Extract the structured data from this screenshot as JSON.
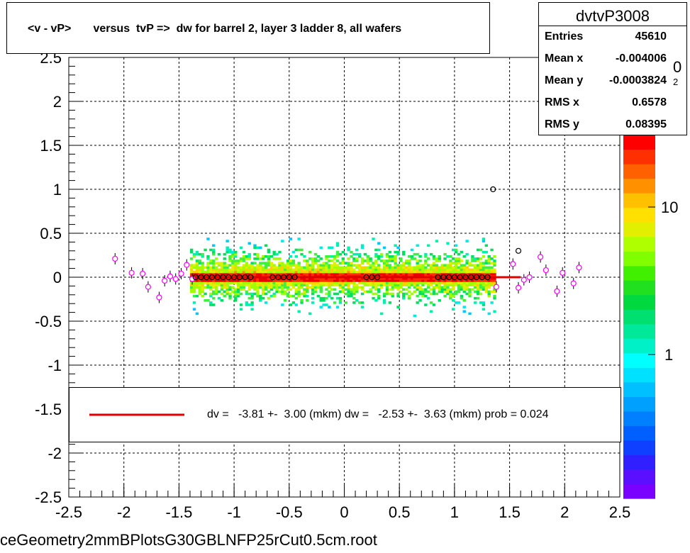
{
  "title": "<v - vP>       versus  tvP =>  dw for barrel 2, layer 3 ladder 8, all wafers",
  "stats": {
    "name": "dvtvP3008",
    "rows": [
      {
        "label": "Entries",
        "value": "45610"
      },
      {
        "label": "Mean x",
        "value": "-0.004006"
      },
      {
        "label": "Mean y",
        "value": "-0.0003824"
      },
      {
        "label": "RMS x",
        "value": "0.6578"
      },
      {
        "label": "RMS y",
        "value": "0.08395"
      }
    ]
  },
  "legend": {
    "text": "dv =   -3.81 +-  3.00 (mkm) dw =   -2.53 +-  3.63 (mkm) prob = 0.024",
    "line_color": "#dd0000"
  },
  "footer": "ceGeometry2mmBPlotsG30GBLNFP25rCut0.5cm.root",
  "chart_data": {
    "type": "heatmap",
    "title": "<v - vP>       versus  tvP =>  dw for barrel 2, layer 3 ladder 8, all wafers",
    "xlim": [
      -2.5,
      2.5
    ],
    "ylim": [
      -2.5,
      2.5
    ],
    "x_ticks": [
      "-2.5",
      "-2",
      "-1.5",
      "-1",
      "-0.5",
      "0",
      "0.5",
      "1",
      "1.5",
      "2",
      "2.5"
    ],
    "y_ticks": [
      "-2.5",
      "-2",
      "-1.5",
      "-1",
      "-0.5",
      "0",
      "0.5",
      "1",
      "1.5",
      "2",
      "2.5"
    ],
    "grid": true,
    "z_scale": "log",
    "z_tick_labels": [
      "1",
      "10",
      "10^2"
    ],
    "density_band": {
      "x_range": [
        -1.4,
        1.35
      ],
      "y_spread": [
        -0.45,
        0.45
      ],
      "core_y": [
        -0.05,
        0.05
      ]
    },
    "profile_points_black": [
      [
        -1.35,
        0.0
      ],
      [
        -1.3,
        0.0
      ],
      [
        -1.25,
        0.0
      ],
      [
        -1.2,
        0.0
      ],
      [
        -1.15,
        0.0
      ],
      [
        -1.1,
        0.0
      ],
      [
        -1.05,
        0.0
      ],
      [
        -1.0,
        0.0
      ],
      [
        -0.95,
        0.0
      ],
      [
        -0.9,
        0.0
      ],
      [
        -0.85,
        0.0
      ],
      [
        -0.65,
        0.0
      ],
      [
        -0.6,
        0.0
      ],
      [
        -0.55,
        0.0
      ],
      [
        -0.5,
        0.0
      ],
      [
        -0.45,
        0.0
      ],
      [
        0.2,
        0.0
      ],
      [
        0.25,
        0.0
      ],
      [
        0.3,
        0.0
      ],
      [
        0.85,
        0.0
      ],
      [
        0.9,
        0.0
      ],
      [
        0.95,
        0.0
      ],
      [
        1.0,
        0.0
      ],
      [
        1.05,
        0.0
      ],
      [
        1.1,
        0.0
      ],
      [
        1.15,
        0.0
      ],
      [
        1.2,
        0.0
      ],
      [
        1.25,
        0.0
      ],
      [
        1.3,
        0.0
      ],
      [
        1.35,
        1.0
      ],
      [
        1.58,
        0.3
      ]
    ],
    "profile_points_magenta": [
      [
        -2.08,
        0.21
      ],
      [
        -1.93,
        0.05
      ],
      [
        -1.83,
        0.04
      ],
      [
        -1.78,
        -0.11
      ],
      [
        -1.68,
        -0.23
      ],
      [
        -1.63,
        -0.04
      ],
      [
        -1.58,
        0.01
      ],
      [
        -1.53,
        -0.02
      ],
      [
        -1.48,
        0.04
      ],
      [
        -1.43,
        0.14
      ],
      [
        -1.38,
        -0.02
      ],
      [
        1.38,
        -0.11
      ],
      [
        1.53,
        0.15
      ],
      [
        1.58,
        -0.12
      ],
      [
        1.63,
        -0.03
      ],
      [
        1.68,
        0.0
      ],
      [
        1.78,
        0.23
      ],
      [
        1.83,
        0.08
      ],
      [
        1.93,
        -0.16
      ],
      [
        1.98,
        0.05
      ],
      [
        2.08,
        -0.07
      ],
      [
        2.13,
        0.11
      ]
    ],
    "fit_line": {
      "x": [
        -1.4,
        1.6
      ],
      "y": [
        0.0,
        0.0
      ]
    }
  }
}
